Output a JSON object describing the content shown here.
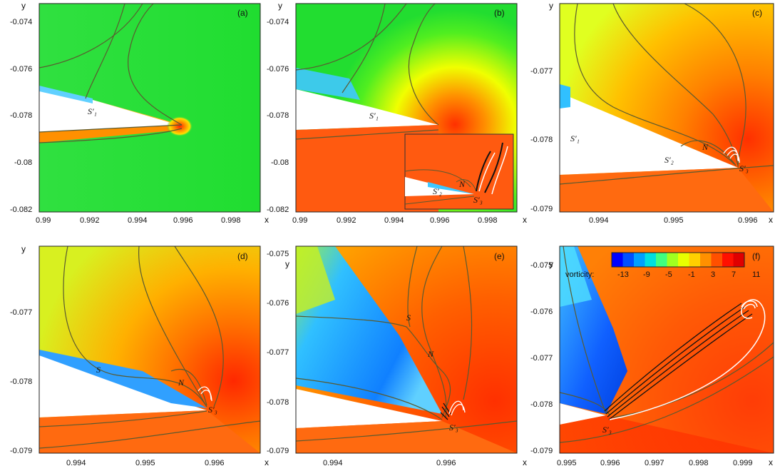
{
  "panels": [
    {
      "label": "(a)",
      "yticks": [
        "-0.074",
        "-0.076",
        "-0.078",
        "-0.08",
        "-0.082"
      ],
      "xticks": [
        "0.99",
        "0.992",
        "0.994",
        "0.996",
        "0.998"
      ]
    },
    {
      "label": "(b)",
      "yticks": [
        "-0.074",
        "-0.076",
        "-0.078",
        "-0.08",
        "-0.082"
      ],
      "xticks": [
        "0.99",
        "0.992",
        "0.994",
        "0.996",
        "0.998"
      ]
    },
    {
      "label": "(c)",
      "yticks": [
        "-0.077",
        "-0.078",
        "-0.079"
      ],
      "xticks": [
        "0.994",
        "0.995",
        "0.996"
      ]
    },
    {
      "label": "(d)",
      "yticks": [
        "-0.077",
        "-0.078",
        "-0.079"
      ],
      "xticks": [
        "0.994",
        "0.995",
        "0.996"
      ]
    },
    {
      "label": "(e)",
      "yticks": [
        "-0.075",
        "-0.076",
        "-0.077",
        "-0.078",
        "-0.079"
      ],
      "xticks": [
        "0.994",
        "0.996"
      ]
    },
    {
      "label": "(f)",
      "yticks": [
        "-0.075",
        "-0.076",
        "-0.077",
        "-0.078",
        "-0.079"
      ],
      "xticks": [
        "0.995",
        "0.996",
        "0.997",
        "0.998",
        "0.999"
      ]
    }
  ],
  "axis": {
    "x": "x",
    "y": "y"
  },
  "annotations": {
    "s1": "S′₁",
    "s2": "S′₂",
    "s3": "S′₃",
    "n": "N",
    "s": "S"
  },
  "colorbar": {
    "title": "vorticity:",
    "ticks": [
      "-13",
      "-9",
      "-5",
      "-1",
      "3",
      "7",
      "11"
    ],
    "colors": [
      "#0000ff",
      "#0050ff",
      "#00a0ff",
      "#00e0e0",
      "#40ff80",
      "#a0ff20",
      "#e8ff00",
      "#ffd000",
      "#ff9000",
      "#ff5000",
      "#ff1000",
      "#e00000"
    ]
  }
}
